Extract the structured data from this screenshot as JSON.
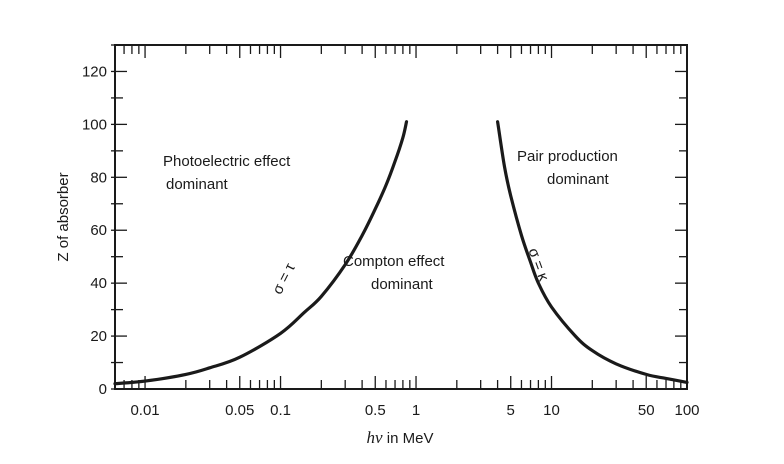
{
  "chart_data": {
    "type": "line",
    "xscale": "log",
    "xlim": [
      0.006,
      100
    ],
    "ylim": [
      0,
      130
    ],
    "x_ticks": [
      0.01,
      0.05,
      0.1,
      0.5,
      1,
      5,
      10,
      50,
      100
    ],
    "x_tick_labels": [
      "0.01",
      "0.05",
      "0.1",
      "0.5",
      "1",
      "5",
      "10",
      "50",
      "100"
    ],
    "y_ticks": [
      0,
      20,
      40,
      60,
      80,
      100,
      120
    ],
    "y_tick_labels": [
      "0",
      "20",
      "40",
      "60",
      "80",
      "100",
      "120"
    ],
    "xlabel_italic": "hν",
    "xlabel_rest": " in MeV",
    "ylabel": "Z of absorber",
    "grid": false,
    "series": [
      {
        "name": "σ = τ",
        "x": [
          0.006,
          0.01,
          0.02,
          0.03,
          0.05,
          0.1,
          0.15,
          0.2,
          0.3,
          0.4,
          0.5,
          0.6,
          0.7,
          0.8,
          0.85
        ],
        "y": [
          2,
          3,
          5.5,
          8,
          12,
          21,
          29,
          35,
          47,
          58,
          68,
          77,
          86,
          95,
          101
        ]
      },
      {
        "name": "σ = κ",
        "x": [
          4,
          4.5,
          5,
          6,
          7,
          8,
          10,
          15,
          20,
          30,
          50,
          70,
          100
        ],
        "y": [
          101,
          84,
          73,
          58,
          48,
          40,
          31,
          20,
          14.5,
          9.5,
          5.5,
          4,
          2.5
        ]
      }
    ],
    "curve_labels": [
      "σ = τ",
      "σ = κ"
    ],
    "regions": [
      {
        "line1": "Photoelectric effect",
        "line2": "dominant"
      },
      {
        "line1": "Compton effect",
        "line2": "dominant"
      },
      {
        "line1": "Pair production",
        "line2": "dominant"
      }
    ]
  }
}
